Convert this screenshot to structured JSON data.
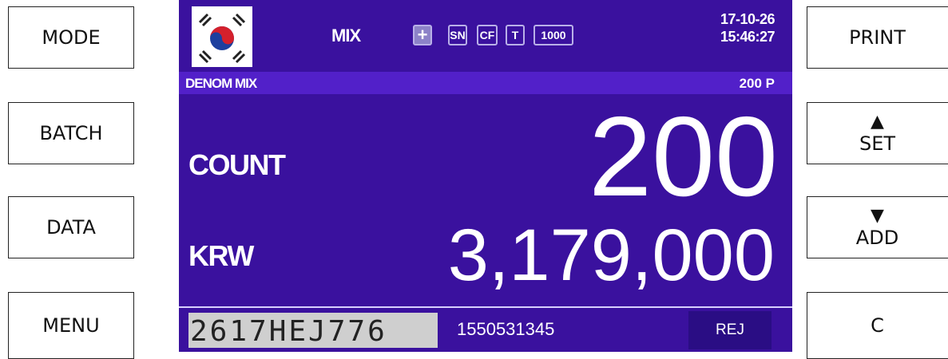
{
  "left_buttons": [
    "MODE",
    "BATCH",
    "DATA",
    "MENU"
  ],
  "right_buttons": [
    {
      "label": "PRINT"
    },
    {
      "arrow": "▲",
      "label": "SET"
    },
    {
      "arrow": "▼",
      "label": "ADD"
    },
    {
      "label": "C"
    }
  ],
  "header": {
    "mode": "MIX",
    "icons": [
      "+",
      "SN",
      "CF",
      "T",
      "1000"
    ],
    "date": "17-10-26",
    "time": "15:46:27"
  },
  "subbar": {
    "left": "DENOM MIX",
    "right": "200 P"
  },
  "count": {
    "label": "COUNT",
    "value": "200"
  },
  "amount": {
    "label": "KRW",
    "value": "3,179,000"
  },
  "footer": {
    "serial_image": "2617HEJ776",
    "serial": "1550531345",
    "reject": "REJ"
  }
}
